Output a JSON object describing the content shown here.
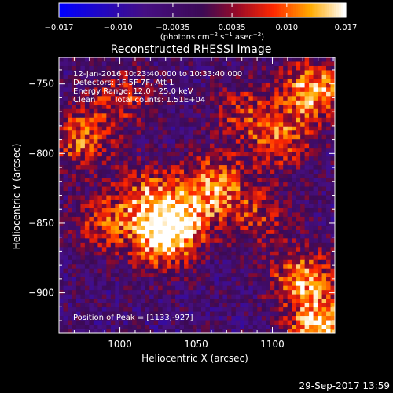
{
  "chart_data": {
    "type": "heatmap",
    "title": "Reconstructed RHESSI Image",
    "xlabel": "Heliocentric X (arcsec)",
    "ylabel": "Heliocentric Y (arcsec)",
    "xlim": [
      960,
      1141
    ],
    "ylim": [
      -929,
      -731
    ],
    "xticks": [
      1000,
      1050,
      1100
    ],
    "yticks": [
      -750,
      -800,
      -850,
      -900
    ],
    "colorbar": {
      "min": -0.017,
      "max": 0.017,
      "ticks": [
        "−0.017",
        "−0.010",
        "−0.0035",
        "0.0035",
        "0.010",
        "0.017"
      ],
      "tick_values": [
        -0.017,
        -0.01,
        -0.0035,
        0.0035,
        0.01,
        0.017
      ],
      "unit_prefix": "(photons cm",
      "unit_exp1": "−2",
      "unit_mid": " s",
      "unit_exp2": "−1",
      "unit_mid2": " asec",
      "unit_exp3": "−2",
      "unit_suffix": ")"
    },
    "info": {
      "line1": "12-Jan-2016 10:23:40.000 to 10:33:40.000",
      "line2": "Detectors: 1F 5F 7F, Att 1",
      "line3": "Energy Range: 12.0 - 25.0 keV",
      "line4_left": "Clean",
      "line4_right": "Total counts: 1.51E+04"
    },
    "peak_label": "Position of Peak = [1133,-927]",
    "peak": [
      1133,
      -927
    ],
    "sources": [
      {
        "x": 1127,
        "y": -755,
        "value": 0.014
      },
      {
        "x": 1133,
        "y": -927,
        "value": 0.017
      },
      {
        "x": 1028,
        "y": -862,
        "value": 0.013
      },
      {
        "x": 1062,
        "y": -822,
        "value": 0.011
      },
      {
        "x": 1018,
        "y": -830,
        "value": 0.008
      },
      {
        "x": 1040,
        "y": -845,
        "value": 0.009
      },
      {
        "x": 1120,
        "y": -890,
        "value": 0.012
      },
      {
        "x": 974,
        "y": -790,
        "value": 0.009
      },
      {
        "x": 1105,
        "y": -790,
        "value": 0.008
      },
      {
        "x": 990,
        "y": -850,
        "value": 0.006
      },
      {
        "x": 1000,
        "y": -760,
        "value": 0.006
      },
      {
        "x": 1080,
        "y": -770,
        "value": 0.005
      },
      {
        "x": 1090,
        "y": -845,
        "value": 0.005
      }
    ]
  },
  "timestamp": "29-Sep-2017 13:59"
}
